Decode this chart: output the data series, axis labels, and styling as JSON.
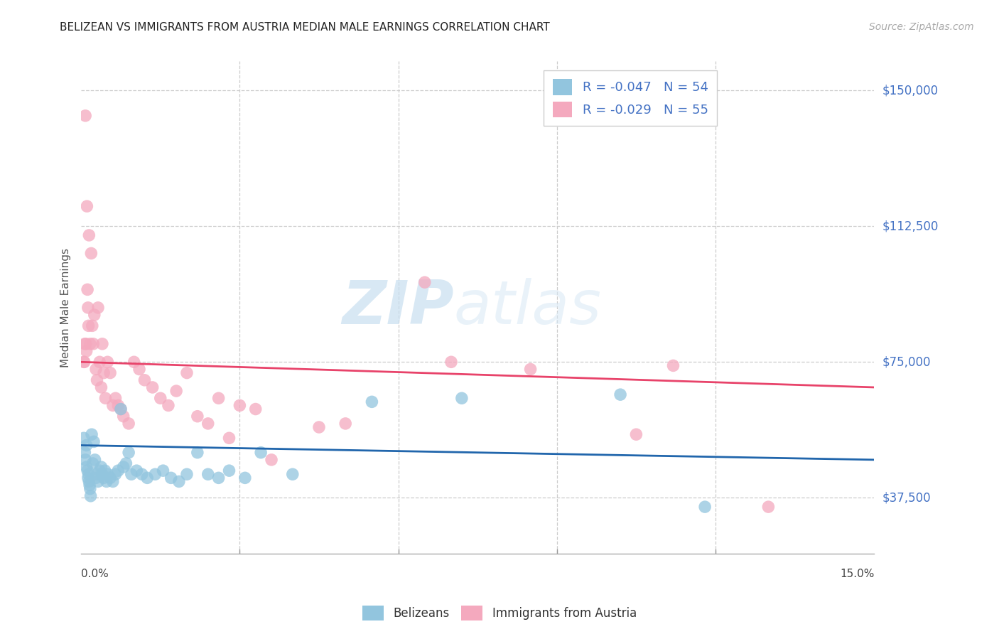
{
  "title": "BELIZEAN VS IMMIGRANTS FROM AUSTRIA MEDIAN MALE EARNINGS CORRELATION CHART",
  "source": "Source: ZipAtlas.com",
  "ylabel": "Median Male Earnings",
  "xmin": 0.0,
  "xmax": 15.0,
  "ymin": 22000,
  "ymax": 158000,
  "blue_R": "-0.047",
  "blue_N": "54",
  "pink_R": "-0.029",
  "pink_N": "55",
  "blue_color": "#92c5de",
  "pink_color": "#f4a9be",
  "blue_line_color": "#2166ac",
  "pink_line_color": "#e8436a",
  "legend_label_blue": "Belizeans",
  "legend_label_pink": "Immigrants from Austria",
  "watermark_zip": "ZIP",
  "watermark_atlas": "atlas",
  "title_color": "#222222",
  "axis_label_color": "#555555",
  "tick_color": "#4472c4",
  "r_n_color": "#4472c4",
  "grid_color": "#cccccc",
  "ytick_vals": [
    37500,
    75000,
    112500,
    150000
  ],
  "ytick_labels": [
    "$37,500",
    "$75,000",
    "$112,500",
    "$150,000"
  ],
  "blue_x": [
    0.05,
    0.07,
    0.08,
    0.1,
    0.1,
    0.12,
    0.13,
    0.14,
    0.15,
    0.16,
    0.17,
    0.18,
    0.2,
    0.22,
    0.24,
    0.26,
    0.28,
    0.3,
    0.32,
    0.35,
    0.38,
    0.4,
    0.43,
    0.45,
    0.48,
    0.5,
    0.55,
    0.6,
    0.65,
    0.7,
    0.75,
    0.8,
    0.85,
    0.9,
    0.95,
    1.05,
    1.15,
    1.25,
    1.4,
    1.55,
    1.7,
    1.85,
    2.0,
    2.2,
    2.4,
    2.6,
    2.8,
    3.1,
    3.4,
    4.0,
    5.5,
    7.2,
    10.2,
    11.8
  ],
  "blue_y": [
    54000,
    50000,
    48000,
    46000,
    52000,
    45000,
    43000,
    44000,
    42000,
    41000,
    40000,
    38000,
    55000,
    47000,
    53000,
    48000,
    43000,
    44000,
    42000,
    45000,
    46000,
    44000,
    43000,
    45000,
    42000,
    44000,
    43000,
    42000,
    44000,
    45000,
    62000,
    46000,
    47000,
    50000,
    44000,
    45000,
    44000,
    43000,
    44000,
    45000,
    43000,
    42000,
    44000,
    50000,
    44000,
    43000,
    45000,
    43000,
    50000,
    44000,
    64000,
    65000,
    66000,
    35000
  ],
  "pink_x": [
    0.05,
    0.06,
    0.07,
    0.08,
    0.09,
    0.1,
    0.11,
    0.12,
    0.13,
    0.14,
    0.15,
    0.17,
    0.19,
    0.21,
    0.23,
    0.25,
    0.28,
    0.3,
    0.32,
    0.35,
    0.38,
    0.4,
    0.43,
    0.46,
    0.5,
    0.55,
    0.6,
    0.65,
    0.7,
    0.75,
    0.8,
    0.9,
    1.0,
    1.1,
    1.2,
    1.35,
    1.5,
    1.65,
    1.8,
    2.0,
    2.2,
    2.4,
    2.6,
    2.8,
    3.0,
    3.3,
    3.6,
    4.5,
    5.0,
    6.5,
    7.0,
    8.5,
    10.5,
    11.2,
    13.0
  ],
  "pink_y": [
    75000,
    75000,
    80000,
    143000,
    80000,
    78000,
    118000,
    95000,
    90000,
    85000,
    110000,
    80000,
    105000,
    85000,
    80000,
    88000,
    73000,
    70000,
    90000,
    75000,
    68000,
    80000,
    72000,
    65000,
    75000,
    72000,
    63000,
    65000,
    63000,
    62000,
    60000,
    58000,
    75000,
    73000,
    70000,
    68000,
    65000,
    63000,
    67000,
    72000,
    60000,
    58000,
    65000,
    54000,
    63000,
    62000,
    48000,
    57000,
    58000,
    97000,
    75000,
    73000,
    55000,
    74000,
    35000
  ]
}
